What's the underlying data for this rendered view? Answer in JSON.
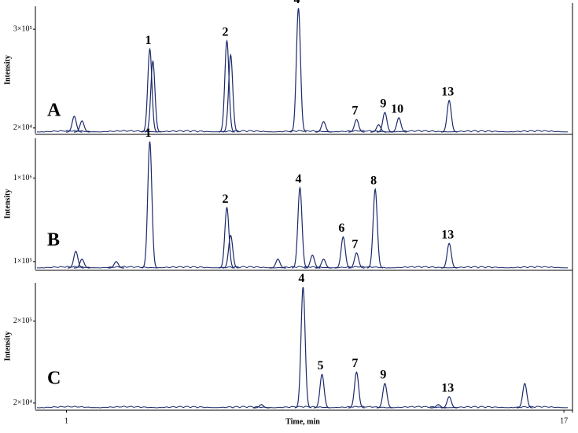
{
  "chart_data": [
    {
      "type": "chromatogram",
      "panel": "A",
      "y_label": "Intensity",
      "color": "#1c2a6b",
      "xlim": [
        0,
        17.2
      ],
      "ylim": [
        4000,
        365000
      ],
      "yticks": [
        {
          "value": 20000,
          "label": "2×10⁴"
        },
        {
          "value": 300000,
          "label": "3×10⁵"
        }
      ],
      "x": [
        1.25,
        1.5,
        3.68,
        3.78,
        6.16,
        6.28,
        8.46,
        9.27,
        10.33,
        11.04,
        11.24,
        11.69,
        13.31
      ],
      "values": [
        53000,
        40000,
        244000,
        209000,
        267000,
        227000,
        360000,
        38000,
        44000,
        29000,
        64000,
        49000,
        98000
      ],
      "labels": [
        null,
        null,
        "1",
        null,
        "2",
        null,
        "4",
        null,
        "7",
        null,
        "9",
        "10",
        "13"
      ]
    },
    {
      "type": "chromatogram",
      "panel": "B",
      "y_label": "Intensity",
      "color": "#1c2a6b",
      "xlim": [
        0,
        17.2
      ],
      "ylim": [
        14000,
        1430000
      ],
      "yticks": [
        {
          "value": 100000,
          "label": "1×10⁵"
        },
        {
          "value": 1000000,
          "label": "1×10⁶"
        }
      ],
      "x": [
        1.3,
        1.5,
        2.6,
        3.68,
        6.16,
        6.28,
        7.8,
        8.51,
        8.91,
        9.27,
        9.9,
        10.33,
        10.93,
        13.31
      ],
      "values": [
        211000,
        126000,
        100000,
        1395000,
        683000,
        383000,
        126000,
        897000,
        169000,
        126000,
        366000,
        194000,
        880000,
        297000
      ],
      "labels": [
        null,
        null,
        null,
        "1",
        "2",
        null,
        null,
        "4",
        null,
        null,
        "6",
        "7",
        "8",
        "13"
      ]
    },
    {
      "type": "chromatogram",
      "panel": "C",
      "y_label": "Intensity",
      "color": "#1c2a6b",
      "x_label": "Time, min",
      "xlim": [
        0,
        17.2
      ],
      "ylim": [
        6000,
        284000
      ],
      "xticks": [
        1,
        17
      ],
      "yticks": [
        {
          "value": 20000,
          "label": "2×10⁴"
        },
        {
          "value": 200000,
          "label": "2×10⁵"
        }
      ],
      "x": [
        7.27,
        8.61,
        9.22,
        10.33,
        11.24,
        12.96,
        13.31,
        15.74
      ],
      "values": [
        16500,
        275000,
        83000,
        88000,
        63000,
        16500,
        34000,
        63000
      ],
      "labels": [
        null,
        "4",
        "5",
        "7",
        "9",
        null,
        "13",
        null
      ]
    }
  ]
}
